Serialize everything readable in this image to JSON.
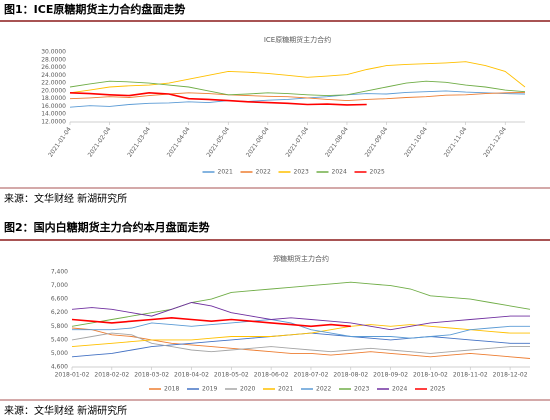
{
  "figures": [
    {
      "caption": "图1：ICE原糖期货主力合约盘面走势",
      "source": "来源：文华财经  新湖研究所"
    },
    {
      "caption": "图2：国内白糖期货主力合约本月盘面走势",
      "source": "来源：文华财经  新湖研究所"
    }
  ],
  "chart_data": [
    {
      "type": "line",
      "title": "ICE原糖期货主力合约",
      "categories": [
        "2021-01-04",
        null,
        "2021-02-04",
        null,
        "2021-03-04",
        null,
        "2021-04-04",
        null,
        "2021-05-04",
        null,
        "2021-06-04",
        null,
        "2021-07-04",
        null,
        "2021-08-04",
        null,
        "2021-09-04",
        null,
        "2021-10-04",
        null,
        "2021-11-04",
        null,
        "2021-12-04",
        null
      ],
      "ylim": [
        12,
        30
      ],
      "yticks": [
        {
          "value": 12,
          "label": "12.0000"
        },
        {
          "value": 14,
          "label": "14.0000"
        },
        {
          "value": 16,
          "label": "16.0000"
        },
        {
          "value": 18,
          "label": "18.0000"
        },
        {
          "value": 20,
          "label": "20.0000"
        },
        {
          "value": 22,
          "label": "22.0000"
        },
        {
          "value": 24,
          "label": "24.0000"
        },
        {
          "value": 26,
          "label": "26.0000"
        },
        {
          "value": 28,
          "label": "28.0000"
        },
        {
          "value": 30,
          "label": "30.0000"
        }
      ],
      "grid": false,
      "legend": "bottom",
      "series": [
        {
          "name": "2021",
          "color": "#5b9bd5",
          "values": [
            15.8,
            16.2,
            16.0,
            16.5,
            16.8,
            16.9,
            17.2,
            17.0,
            17.5,
            17.3,
            17.6,
            17.8,
            18.2,
            18.5,
            19.0,
            19.3,
            19.2,
            19.6,
            19.8,
            20.0,
            19.7,
            19.5,
            19.3,
            19.2
          ]
        },
        {
          "name": "2022",
          "color": "#ed7d31",
          "values": [
            18.0,
            18.2,
            18.5,
            18.3,
            18.8,
            19.2,
            19.5,
            19.3,
            19.0,
            18.8,
            18.6,
            18.5,
            18.2,
            17.8,
            17.5,
            17.8,
            18.0,
            18.3,
            18.5,
            18.9,
            19.0,
            19.3,
            19.5,
            19.6
          ]
        },
        {
          "name": "2023",
          "color": "#ffc000",
          "values": [
            19.5,
            20.2,
            21.0,
            21.3,
            21.5,
            22.0,
            23.0,
            24.0,
            25.0,
            24.8,
            24.5,
            24.0,
            23.5,
            23.8,
            24.2,
            25.5,
            26.5,
            26.8,
            27.0,
            27.2,
            27.5,
            26.5,
            25.0,
            21.0
          ]
        },
        {
          "name": "2024",
          "color": "#70ad47",
          "values": [
            21.0,
            21.8,
            22.5,
            22.3,
            22.0,
            21.5,
            21.0,
            20.0,
            19.0,
            19.2,
            19.5,
            19.3,
            19.0,
            18.8,
            19.0,
            20.0,
            21.0,
            22.0,
            22.5,
            22.2,
            21.5,
            21.0,
            20.2,
            19.8
          ]
        },
        {
          "name": "2025",
          "color": "#ff0000",
          "values": [
            19.5,
            19.3,
            19.0,
            18.8,
            19.5,
            19.2,
            18.0,
            17.8,
            17.5,
            17.2,
            17.0,
            16.8,
            16.5,
            16.6,
            16.4,
            16.5,
            null,
            null,
            null,
            null,
            null,
            null,
            null,
            null
          ]
        }
      ]
    },
    {
      "type": "line",
      "title": "郑糖期货主力合约",
      "categories": [
        "2018-01-02",
        null,
        "2018-02-02",
        null,
        "2018-03-02",
        null,
        "2018-04-02",
        null,
        "2018-05-02",
        null,
        "2018-06-02",
        null,
        "2018-07-02",
        null,
        "2018-08-02",
        null,
        "2018-09-02",
        null,
        "2018-10-02",
        null,
        "2018-11-02",
        null,
        "2018-12-02",
        null
      ],
      "ylim": [
        4600,
        7400
      ],
      "yticks": [
        {
          "value": 4600,
          "label": "4,600"
        },
        {
          "value": 5000,
          "label": "5,000"
        },
        {
          "value": 5400,
          "label": "5,400"
        },
        {
          "value": 5800,
          "label": "5,800"
        },
        {
          "value": 6200,
          "label": "6,200"
        },
        {
          "value": 6600,
          "label": "6,600"
        },
        {
          "value": 7000,
          "label": "7,000"
        },
        {
          "value": 7400,
          "label": "7,400"
        }
      ],
      "grid": false,
      "legend": "bottom",
      "series": [
        {
          "name": "2018",
          "color": "#ed7d31",
          "values": [
            5750,
            5700,
            5550,
            5500,
            5400,
            5300,
            5250,
            5200,
            5150,
            5100,
            5050,
            5000,
            5000,
            4950,
            5000,
            5050,
            5000,
            4950,
            4900,
            4950,
            5000,
            4950,
            4900,
            4850
          ]
        },
        {
          "name": "2019",
          "color": "#4472c4",
          "values": [
            4900,
            4950,
            5000,
            5100,
            5200,
            5250,
            5300,
            5350,
            5400,
            5450,
            5500,
            5550,
            5600,
            5550,
            5500,
            5450,
            5400,
            5450,
            5500,
            5450,
            5400,
            5350,
            5300,
            5300
          ]
        },
        {
          "name": "2020",
          "color": "#a5a5a5",
          "values": [
            5400,
            5500,
            5600,
            5550,
            5300,
            5200,
            5100,
            5050,
            5100,
            5150,
            5200,
            5150,
            5100,
            5050,
            5100,
            5150,
            5100,
            5050,
            5000,
            5050,
            5100,
            5150,
            5200,
            5200
          ]
        },
        {
          "name": "2021",
          "color": "#ffc000",
          "values": [
            5200,
            5250,
            5300,
            5350,
            5400,
            5400,
            5400,
            5450,
            5500,
            5500,
            5500,
            5550,
            5600,
            5700,
            5800,
            5850,
            5800,
            5850,
            5800,
            5750,
            5700,
            5650,
            5600,
            5600
          ]
        },
        {
          "name": "2022",
          "color": "#5b9bd5",
          "values": [
            5700,
            5700,
            5700,
            5750,
            5900,
            5850,
            5800,
            5850,
            5900,
            5950,
            6000,
            5900,
            5700,
            5600,
            5500,
            5500,
            5500,
            5450,
            5500,
            5550,
            5700,
            5750,
            5800,
            5800
          ]
        },
        {
          "name": "2023",
          "color": "#70ad47",
          "values": [
            5800,
            5900,
            6000,
            6100,
            6200,
            6300,
            6500,
            6600,
            6800,
            6850,
            6900,
            6950,
            7000,
            7050,
            7100,
            7050,
            7000,
            6900,
            6700,
            6650,
            6600,
            6500,
            6400,
            6300
          ]
        },
        {
          "name": "2024",
          "color": "#7030a0",
          "values": [
            6300,
            6350,
            6300,
            6200,
            6100,
            6300,
            6500,
            6400,
            6200,
            6100,
            6000,
            6050,
            6000,
            5950,
            5900,
            5800,
            5700,
            5800,
            5900,
            5950,
            6000,
            6050,
            6100,
            6100
          ]
        },
        {
          "name": "2025",
          "color": "#ff0000",
          "values": [
            6000,
            5950,
            5900,
            5950,
            6000,
            6050,
            6000,
            5950,
            6000,
            5950,
            5900,
            5850,
            5800,
            5850,
            5800,
            null,
            null,
            null,
            null,
            null,
            null,
            null,
            null,
            null
          ]
        }
      ]
    }
  ]
}
